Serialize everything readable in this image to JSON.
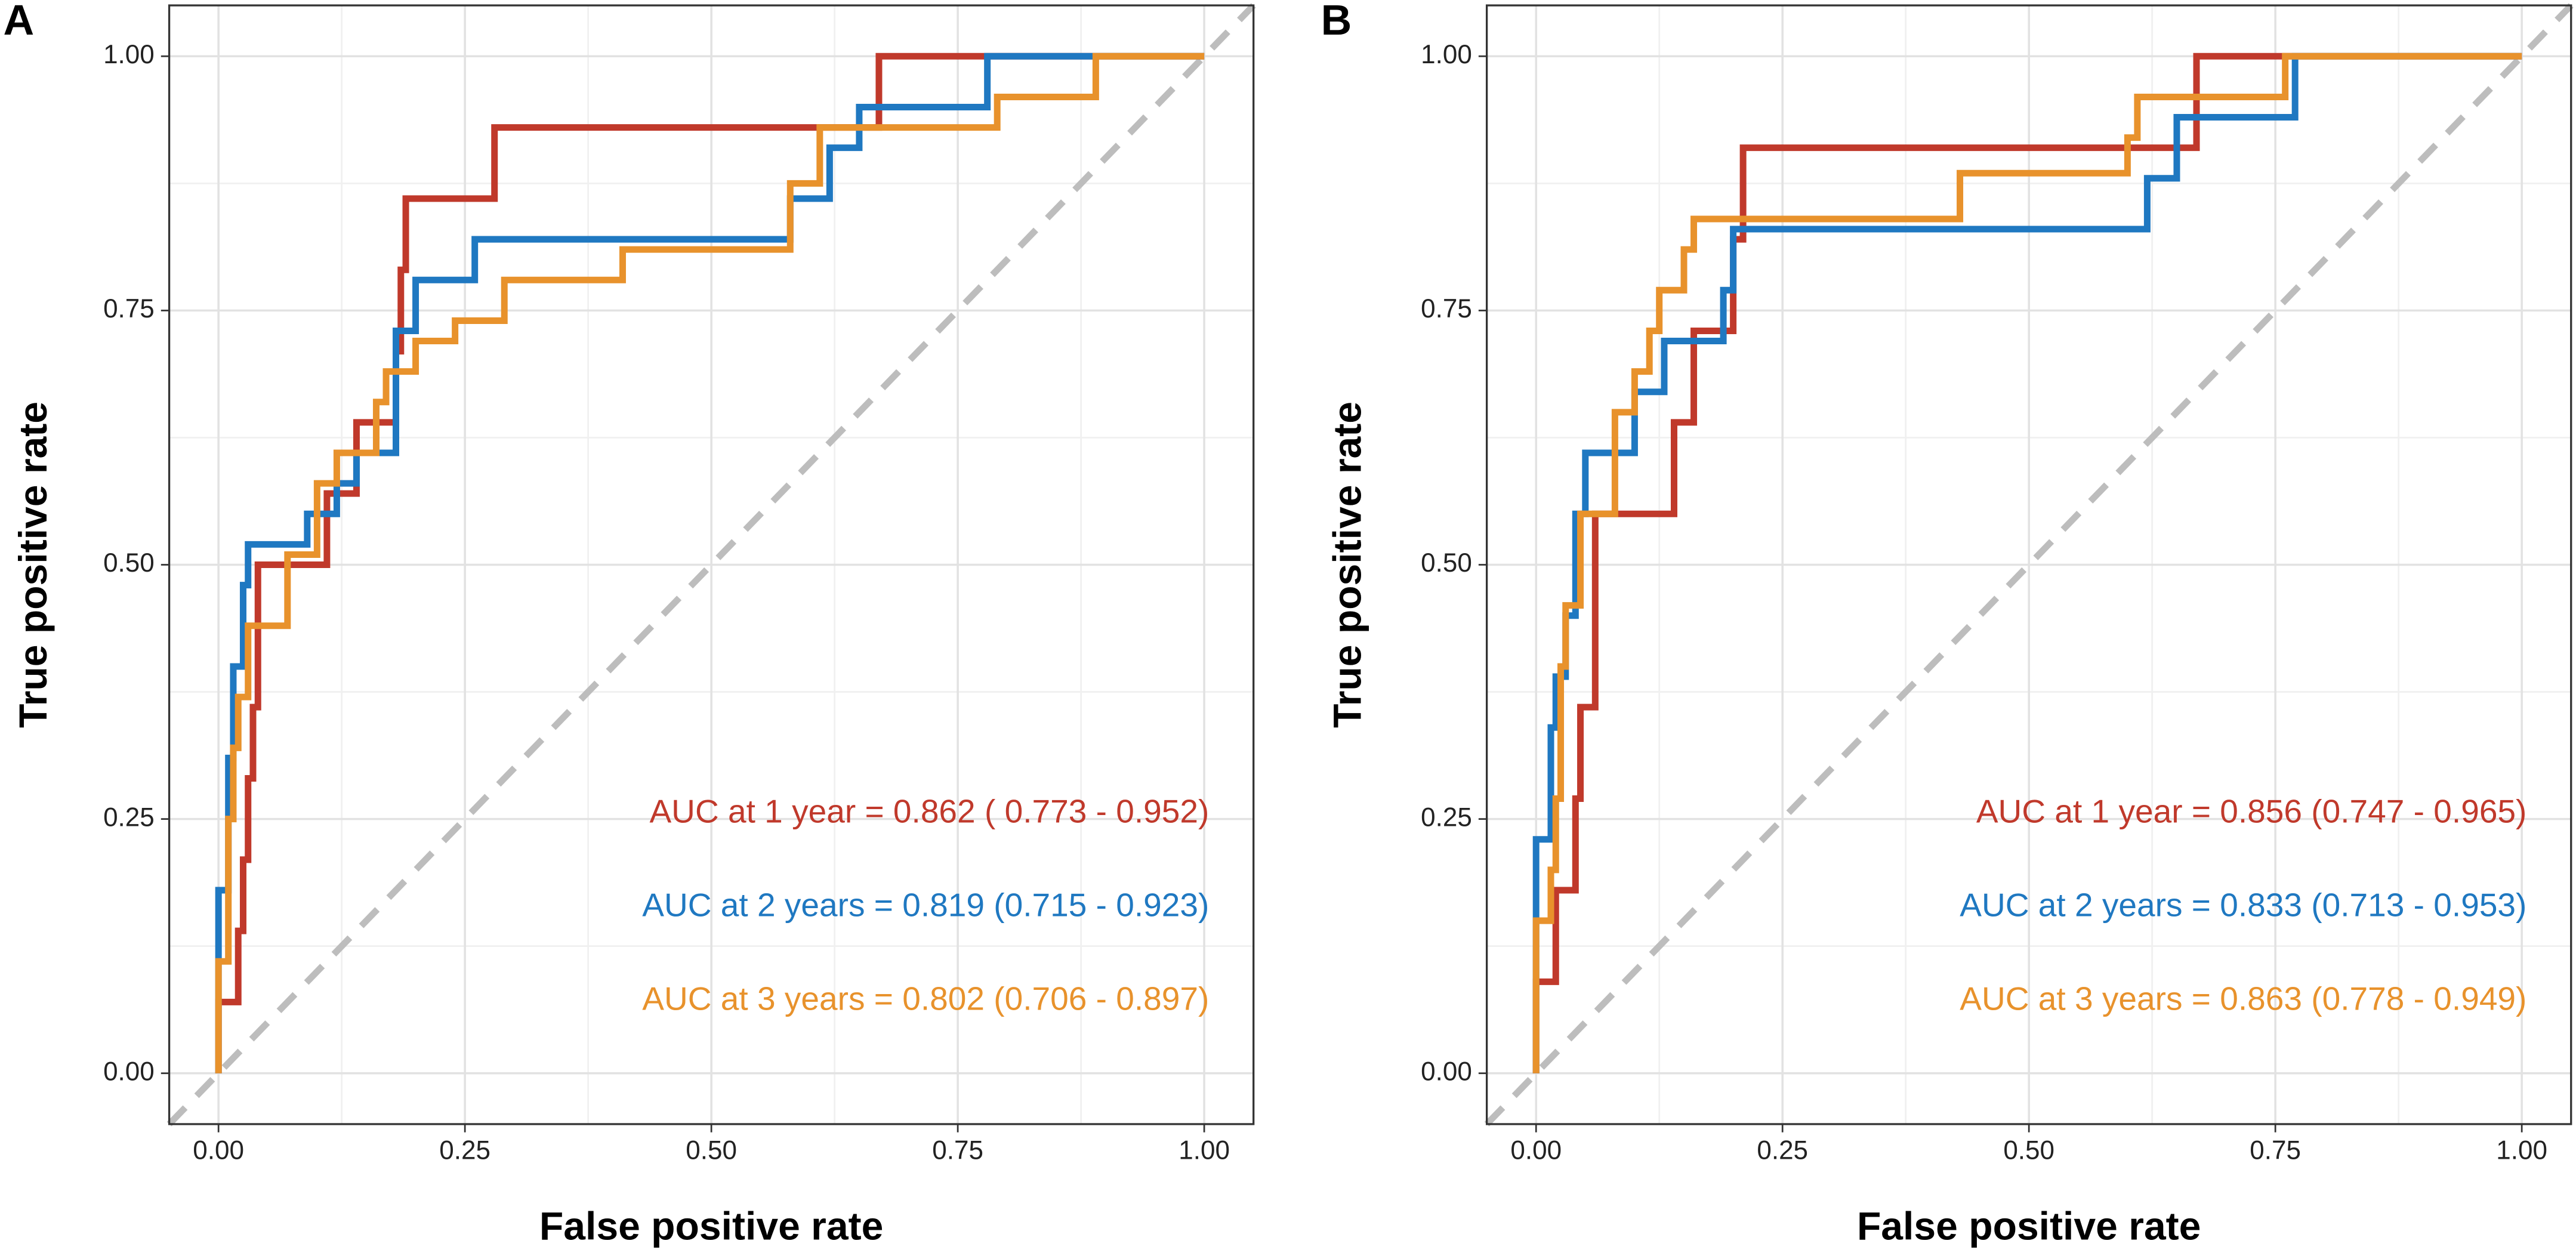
{
  "chart_data": [
    {
      "type": "line",
      "title": "A",
      "xlabel": "False positive rate",
      "ylabel": "True positive rate",
      "xlim": [
        -0.05,
        1.05
      ],
      "ylim": [
        -0.05,
        1.05
      ],
      "xticks": [
        {
          "value": 0,
          "label": "0.00"
        },
        {
          "value": 0.25,
          "label": "0.25"
        },
        {
          "value": 0.5,
          "label": "0.50"
        },
        {
          "value": 0.75,
          "label": "0.75"
        },
        {
          "value": 1,
          "label": "1.00"
        }
      ],
      "yticks": [
        {
          "value": 0,
          "label": "0.00"
        },
        {
          "value": 0.25,
          "label": "0.25"
        },
        {
          "value": 0.5,
          "label": "0.50"
        },
        {
          "value": 0.75,
          "label": "0.75"
        },
        {
          "value": 1,
          "label": "1.00"
        }
      ],
      "xminorticks": [
        0.125,
        0.375,
        0.625,
        0.875
      ],
      "yminorticks": [
        0.125,
        0.375,
        0.625,
        0.875
      ],
      "grid": true,
      "diagonal": true,
      "series": [
        {
          "label": "AUC at 1 year = 0.862 ( 0.773 - 0.952)",
          "color": "#c0392b",
          "x": [
            0,
            0,
            0.02,
            0.02,
            0.025,
            0.025,
            0.03,
            0.03,
            0.035,
            0.035,
            0.04,
            0.04,
            0.11,
            0.11,
            0.14,
            0.14,
            0.18,
            0.18,
            0.185,
            0.185,
            0.19,
            0.19,
            0.28,
            0.28,
            0.67,
            0.67,
            1
          ],
          "values": [
            0,
            0.07,
            0.07,
            0.14,
            0.14,
            0.21,
            0.21,
            0.29,
            0.29,
            0.36,
            0.36,
            0.5,
            0.5,
            0.57,
            0.57,
            0.64,
            0.64,
            0.71,
            0.71,
            0.79,
            0.79,
            0.86,
            0.86,
            0.93,
            0.93,
            1,
            1
          ]
        },
        {
          "label": "AUC at 2 years = 0.819 (0.715 - 0.923)",
          "color": "#1f78c1",
          "x": [
            0,
            0,
            0.01,
            0.01,
            0.015,
            0.015,
            0.025,
            0.025,
            0.03,
            0.03,
            0.09,
            0.09,
            0.12,
            0.12,
            0.14,
            0.14,
            0.18,
            0.18,
            0.2,
            0.2,
            0.26,
            0.26,
            0.58,
            0.58,
            0.62,
            0.62,
            0.65,
            0.65,
            0.78,
            0.78,
            1
          ],
          "values": [
            0,
            0.18,
            0.18,
            0.31,
            0.31,
            0.4,
            0.4,
            0.48,
            0.48,
            0.52,
            0.52,
            0.55,
            0.55,
            0.58,
            0.58,
            0.61,
            0.61,
            0.73,
            0.73,
            0.78,
            0.78,
            0.82,
            0.82,
            0.86,
            0.86,
            0.91,
            0.91,
            0.95,
            0.95,
            1,
            1
          ]
        },
        {
          "label": "AUC at 3 years = 0.802 (0.706 - 0.897)",
          "color": "#e8922c",
          "x": [
            0,
            0,
            0.01,
            0.01,
            0.015,
            0.015,
            0.02,
            0.02,
            0.03,
            0.03,
            0.07,
            0.07,
            0.1,
            0.1,
            0.12,
            0.12,
            0.16,
            0.16,
            0.17,
            0.17,
            0.2,
            0.2,
            0.24,
            0.24,
            0.29,
            0.29,
            0.41,
            0.41,
            0.58,
            0.58,
            0.61,
            0.61,
            0.79,
            0.79,
            0.89,
            0.89,
            1
          ],
          "values": [
            0,
            0.11,
            0.11,
            0.25,
            0.25,
            0.32,
            0.32,
            0.37,
            0.37,
            0.44,
            0.44,
            0.51,
            0.51,
            0.58,
            0.58,
            0.61,
            0.61,
            0.66,
            0.66,
            0.69,
            0.69,
            0.72,
            0.72,
            0.74,
            0.74,
            0.78,
            0.78,
            0.81,
            0.81,
            0.875,
            0.875,
            0.93,
            0.93,
            0.96,
            0.96,
            1,
            1
          ]
        }
      ]
    },
    {
      "type": "line",
      "title": "B",
      "xlabel": "False positive rate",
      "ylabel": "True positive rate",
      "xlim": [
        -0.05,
        1.05
      ],
      "ylim": [
        -0.05,
        1.05
      ],
      "xticks": [
        {
          "value": 0,
          "label": "0.00"
        },
        {
          "value": 0.25,
          "label": "0.25"
        },
        {
          "value": 0.5,
          "label": "0.50"
        },
        {
          "value": 0.75,
          "label": "0.75"
        },
        {
          "value": 1,
          "label": "1.00"
        }
      ],
      "yticks": [
        {
          "value": 0,
          "label": "0.00"
        },
        {
          "value": 0.25,
          "label": "0.25"
        },
        {
          "value": 0.5,
          "label": "0.50"
        },
        {
          "value": 0.75,
          "label": "0.75"
        },
        {
          "value": 1,
          "label": "1.00"
        }
      ],
      "xminorticks": [
        0.125,
        0.375,
        0.625,
        0.875
      ],
      "yminorticks": [
        0.125,
        0.375,
        0.625,
        0.875
      ],
      "grid": true,
      "diagonal": true,
      "series": [
        {
          "label": "AUC at 1 year = 0.856 (0.747 - 0.965)",
          "color": "#c0392b",
          "x": [
            0,
            0,
            0.02,
            0.02,
            0.04,
            0.04,
            0.045,
            0.045,
            0.06,
            0.06,
            0.14,
            0.14,
            0.16,
            0.16,
            0.2,
            0.2,
            0.21,
            0.21,
            0.67,
            0.67,
            1
          ],
          "values": [
            0,
            0.09,
            0.09,
            0.18,
            0.18,
            0.27,
            0.27,
            0.36,
            0.36,
            0.55,
            0.55,
            0.64,
            0.64,
            0.73,
            0.73,
            0.82,
            0.82,
            0.91,
            0.91,
            1,
            1
          ]
        },
        {
          "label": "AUC at 2 years = 0.833 (0.713 - 0.953)",
          "color": "#1f78c1",
          "x": [
            0,
            0,
            0.015,
            0.015,
            0.02,
            0.02,
            0.03,
            0.03,
            0.04,
            0.04,
            0.05,
            0.05,
            0.1,
            0.1,
            0.13,
            0.13,
            0.19,
            0.19,
            0.2,
            0.2,
            0.62,
            0.62,
            0.65,
            0.65,
            0.77,
            0.77,
            1
          ],
          "values": [
            0,
            0.23,
            0.23,
            0.34,
            0.34,
            0.39,
            0.39,
            0.45,
            0.45,
            0.55,
            0.55,
            0.61,
            0.61,
            0.67,
            0.67,
            0.72,
            0.72,
            0.77,
            0.77,
            0.83,
            0.83,
            0.88,
            0.88,
            0.94,
            0.94,
            1,
            1
          ]
        },
        {
          "label": "AUC at 3 years = 0.863 (0.778 - 0.949)",
          "color": "#e8922c",
          "x": [
            0,
            0,
            0.015,
            0.015,
            0.02,
            0.02,
            0.025,
            0.025,
            0.03,
            0.03,
            0.045,
            0.045,
            0.08,
            0.08,
            0.1,
            0.1,
            0.115,
            0.115,
            0.125,
            0.125,
            0.15,
            0.15,
            0.16,
            0.16,
            0.43,
            0.43,
            0.6,
            0.6,
            0.61,
            0.61,
            0.76,
            0.76,
            1
          ],
          "values": [
            0,
            0.15,
            0.15,
            0.2,
            0.2,
            0.27,
            0.27,
            0.4,
            0.4,
            0.46,
            0.46,
            0.55,
            0.55,
            0.65,
            0.65,
            0.69,
            0.69,
            0.73,
            0.73,
            0.77,
            0.77,
            0.81,
            0.81,
            0.84,
            0.84,
            0.885,
            0.885,
            0.92,
            0.92,
            0.96,
            0.96,
            1,
            1
          ]
        }
      ]
    }
  ]
}
